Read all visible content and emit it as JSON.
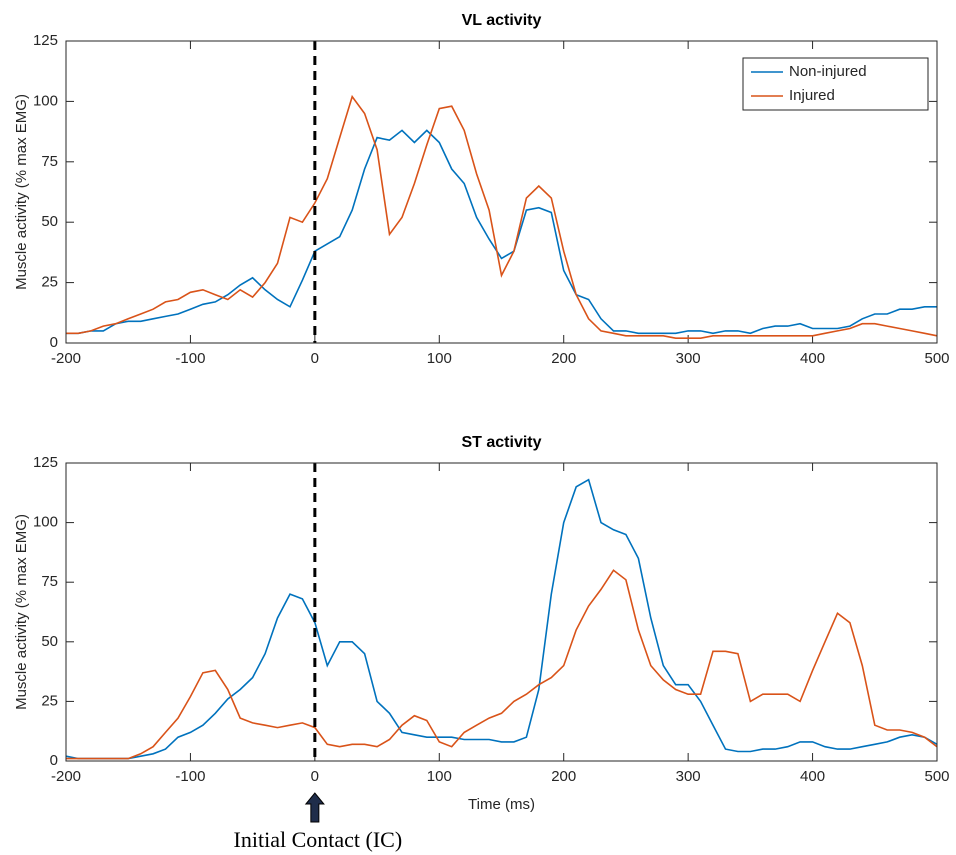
{
  "chart_data": [
    {
      "type": "line",
      "title": "VL activity",
      "ylabel": "Muscle activity (% max EMG)",
      "x": [
        -200,
        -190,
        -180,
        -170,
        -160,
        -150,
        -140,
        -130,
        -120,
        -110,
        -100,
        -90,
        -80,
        -70,
        -60,
        -50,
        -40,
        -30,
        -20,
        -10,
        0,
        10,
        20,
        30,
        40,
        50,
        60,
        70,
        80,
        90,
        100,
        110,
        120,
        130,
        140,
        150,
        160,
        170,
        180,
        190,
        200,
        210,
        220,
        230,
        240,
        250,
        260,
        270,
        280,
        290,
        300,
        310,
        320,
        330,
        340,
        350,
        360,
        370,
        380,
        390,
        400,
        410,
        420,
        430,
        440,
        450,
        460,
        470,
        480,
        490,
        500
      ],
      "series": [
        {
          "name": "Non-injured",
          "color": "#0072bd",
          "values": [
            4,
            4,
            5,
            5,
            8,
            9,
            9,
            10,
            11,
            12,
            14,
            16,
            17,
            20,
            24,
            27,
            22,
            18,
            15,
            26,
            38,
            41,
            44,
            55,
            72,
            85,
            84,
            88,
            83,
            88,
            83,
            72,
            66,
            52,
            43,
            35,
            38,
            55,
            56,
            54,
            30,
            20,
            18,
            10,
            5,
            5,
            4,
            4,
            4,
            4,
            5,
            5,
            4,
            5,
            5,
            4,
            6,
            7,
            7,
            8,
            6,
            6,
            6,
            7,
            10,
            12,
            12,
            14,
            14,
            15,
            15
          ]
        },
        {
          "name": "Injured",
          "color": "#d95319",
          "values": [
            4,
            4,
            5,
            7,
            8,
            10,
            12,
            14,
            17,
            18,
            21,
            22,
            20,
            18,
            22,
            19,
            25,
            33,
            52,
            50,
            58,
            68,
            85,
            102,
            95,
            80,
            45,
            52,
            66,
            82,
            97,
            98,
            88,
            70,
            55,
            28,
            38,
            60,
            65,
            60,
            38,
            20,
            10,
            5,
            4,
            3,
            3,
            3,
            3,
            2,
            2,
            2,
            3,
            3,
            3,
            3,
            3,
            3,
            3,
            3,
            3,
            4,
            5,
            6,
            8,
            8,
            7,
            6,
            5,
            4,
            3
          ]
        }
      ],
      "xlim": [
        -200,
        500
      ],
      "ylim": [
        0,
        125
      ],
      "xticks": [
        -200,
        -100,
        0,
        100,
        200,
        300,
        400,
        500
      ],
      "yticks": [
        0,
        25,
        50,
        75,
        100,
        125
      ],
      "vline": 0,
      "legend": "top-right"
    },
    {
      "type": "line",
      "title": "ST activity",
      "ylabel": "Muscle activity (% max EMG)",
      "xlabel": "Time (ms)",
      "x": [
        -200,
        -190,
        -180,
        -170,
        -160,
        -150,
        -140,
        -130,
        -120,
        -110,
        -100,
        -90,
        -80,
        -70,
        -60,
        -50,
        -40,
        -30,
        -20,
        -10,
        0,
        10,
        20,
        30,
        40,
        50,
        60,
        70,
        80,
        90,
        100,
        110,
        120,
        130,
        140,
        150,
        160,
        170,
        180,
        190,
        200,
        210,
        220,
        230,
        240,
        250,
        260,
        270,
        280,
        290,
        300,
        310,
        320,
        330,
        340,
        350,
        360,
        370,
        380,
        390,
        400,
        410,
        420,
        430,
        440,
        450,
        460,
        470,
        480,
        490,
        500
      ],
      "series": [
        {
          "name": "Non-injured",
          "color": "#0072bd",
          "values": [
            2,
            1,
            1,
            1,
            1,
            1,
            2,
            3,
            5,
            10,
            12,
            15,
            20,
            26,
            30,
            35,
            45,
            60,
            70,
            68,
            58,
            40,
            50,
            50,
            45,
            25,
            20,
            12,
            11,
            10,
            10,
            10,
            9,
            9,
            9,
            8,
            8,
            10,
            30,
            70,
            100,
            115,
            118,
            100,
            97,
            95,
            85,
            60,
            40,
            32,
            32,
            25,
            15,
            5,
            4,
            4,
            5,
            5,
            6,
            8,
            8,
            6,
            5,
            5,
            6,
            7,
            8,
            10,
            11,
            10,
            7
          ]
        },
        {
          "name": "Injured",
          "color": "#d95319",
          "values": [
            1,
            1,
            1,
            1,
            1,
            1,
            3,
            6,
            12,
            18,
            27,
            37,
            38,
            30,
            18,
            16,
            15,
            14,
            15,
            16,
            14,
            7,
            6,
            7,
            7,
            6,
            9,
            15,
            19,
            17,
            8,
            6,
            12,
            15,
            18,
            20,
            25,
            28,
            32,
            35,
            40,
            55,
            65,
            72,
            80,
            76,
            55,
            40,
            34,
            30,
            28,
            28,
            46,
            46,
            45,
            25,
            28,
            28,
            28,
            25,
            38,
            50,
            62,
            58,
            40,
            15,
            13,
            13,
            12,
            10,
            6
          ]
        }
      ],
      "xlim": [
        -200,
        500
      ],
      "ylim": [
        0,
        125
      ],
      "xticks": [
        -200,
        -100,
        0,
        100,
        200,
        300,
        400,
        500
      ],
      "yticks": [
        0,
        25,
        50,
        75,
        100,
        125
      ],
      "vline": 0,
      "annotation": "Initial Contact (IC)"
    }
  ]
}
